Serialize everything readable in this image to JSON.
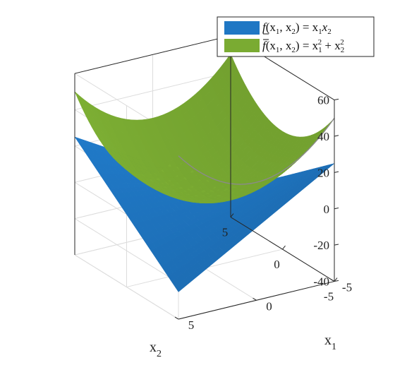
{
  "chart_data": {
    "type": "surface",
    "title": "",
    "xlabel": "x",
    "xlabel_sub": "1",
    "ylabel": "x",
    "ylabel_sub": "2",
    "zlabel": "",
    "xlim": [
      -5,
      5
    ],
    "ylim": [
      -5,
      5
    ],
    "zlim": [
      -40,
      60
    ],
    "x_ticks": [
      "-5",
      "0",
      "5"
    ],
    "y_ticks": [
      "5",
      "0",
      "-5"
    ],
    "z_ticks": [
      "60",
      "40",
      "20",
      "0",
      "-20",
      "-40"
    ],
    "grid": true,
    "legend_position": "top-right",
    "series": [
      {
        "name": "f̲(x₁, x₂) = x₁x₂",
        "name_parts": {
          "fn": "f",
          "args": "(x",
          "s1": "1",
          "comma": ", x",
          "s2": "2",
          "rest": ") = x",
          "r1": "1",
          "x": "x",
          "r2": "2"
        },
        "formula": "x1*x2",
        "color": "#1f77c4",
        "corner_values": {
          "x1=-5,x2=-5": 25,
          "x1=5,x2=-5": -25,
          "x1=-5,x2=5": -25,
          "x1=5,x2=5": 25
        }
      },
      {
        "name": "f̄(x₁, x₂) = x₁² + x₂²",
        "name_parts": {
          "fn": "f",
          "args": "(x",
          "s1": "1",
          "comma": ", x",
          "s2": "2",
          "rest": ") = x",
          "p1": "1",
          "e1": "2",
          "plus": " + x",
          "p2": "2",
          "e2": "2"
        },
        "formula": "x1^2+x2^2",
        "color": "#7aab32",
        "corner_values": {
          "x1=-5,x2=-5": 50,
          "x1=5,x2=-5": 50,
          "x1=-5,x2=5": 50,
          "x1=5,x2=5": 50
        }
      }
    ]
  }
}
